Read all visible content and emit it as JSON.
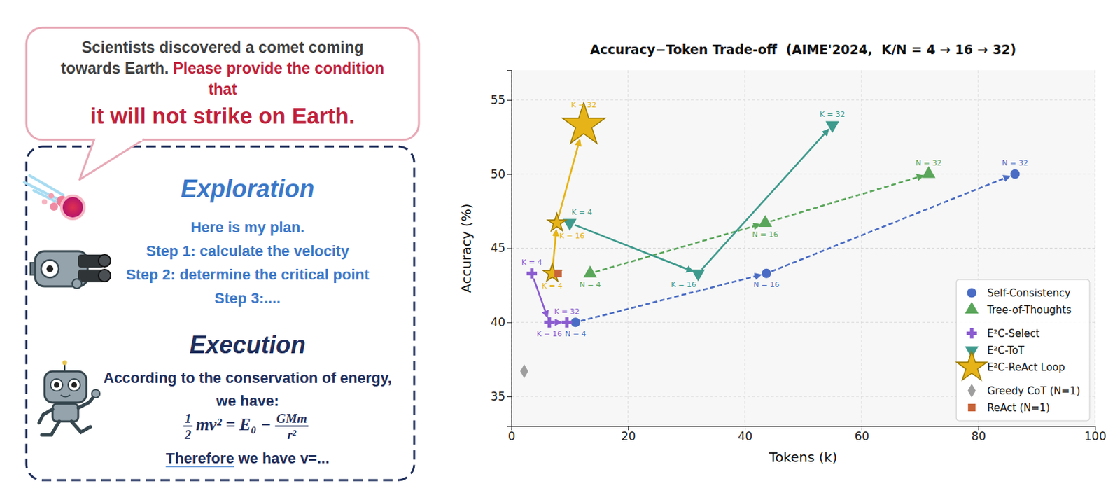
{
  "illustration": {
    "question": {
      "context": "Scientists discovered a comet coming towards Earth.",
      "request": "Please provide the condition that",
      "emphasis": "it will not strike on Earth."
    },
    "exploration": {
      "title": "Exploration",
      "lines": [
        "Here is my plan.",
        "Step 1: calculate the velocity",
        "Step 2: determine the critical point",
        "Step 3:...."
      ]
    },
    "execution": {
      "title": "Execution",
      "text": "According to the conservation of energy, we have:",
      "formula": {
        "coefficient": [
          "1",
          "2"
        ],
        "left": "mv²",
        "right": "= E₀ −",
        "fraction": [
          "GMm",
          "r²"
        ]
      },
      "conclusion": {
        "keyword": "Therefore",
        "rest": "we have v=..."
      }
    }
  },
  "chart_data": {
    "type": "scatter",
    "title": "Accuracy−Token Trade-off  (AIME'2024,  K/N = 4 → 16 → 32)",
    "x_label": "Tokens (k)",
    "y_label": "Accuracy (%)",
    "xlim": [
      0,
      100
    ],
    "xticks": [
      0,
      20,
      40,
      60,
      80,
      100
    ],
    "ylim": [
      33,
      57
    ],
    "yticks": [
      35,
      40,
      45,
      50,
      55
    ],
    "grid": true,
    "legend": "lower right",
    "series": [
      {
        "name": "Self-Consistency",
        "color": "#4a6cc4",
        "marker": "circle",
        "line_style": "dashed",
        "x": [
          11,
          43.7,
          86.3
        ],
        "values": [
          40,
          43.3,
          50
        ],
        "labels": [
          "N = 4",
          "N = 16",
          "N = 32"
        ]
      },
      {
        "name": "Tree-of-Thoughts",
        "color": "#5aa65a",
        "marker": "triangle-up",
        "line_style": "dashed",
        "x": [
          13.5,
          43.5,
          71.5
        ],
        "values": [
          43.3,
          46.7,
          50
        ],
        "labels": [
          "N = 4",
          "N = 16",
          "N = 32"
        ]
      },
      {
        "name": "E²C-Select",
        "color": "#8a5cd0",
        "marker": "plus",
        "line_style": "solid",
        "x": [
          3.5,
          6.5,
          9.5
        ],
        "values": [
          43.3,
          40,
          40
        ],
        "labels": [
          "K = 4",
          "K = 16",
          "K = 32"
        ]
      },
      {
        "name": "E²C-ToT",
        "color": "#3d9a8c",
        "marker": "triangle-down",
        "line_style": "solid",
        "x": [
          10,
          32,
          55
        ],
        "values": [
          46.7,
          43.3,
          53.3
        ],
        "labels": [
          "K = 4",
          "K = 16",
          "K = 32"
        ]
      },
      {
        "name": "E²C-ReAct Loop",
        "color": "#e6b418",
        "marker": "star",
        "line_style": "solid",
        "x": [
          7,
          7.8,
          12.4
        ],
        "values": [
          43.3,
          46.7,
          53.3
        ],
        "labels": [
          "K = 4",
          "K = 16",
          "K = 32"
        ]
      },
      {
        "name": "Greedy CoT (N=1)",
        "color": "#9e9e9e",
        "marker": "diamond",
        "line_style": "none",
        "x": [
          2.2
        ],
        "values": [
          36.7
        ]
      },
      {
        "name": "ReAct (N=1)",
        "color": "#c8643a",
        "marker": "square",
        "line_style": "none",
        "x": [
          8
        ],
        "values": [
          43.3
        ]
      }
    ]
  }
}
